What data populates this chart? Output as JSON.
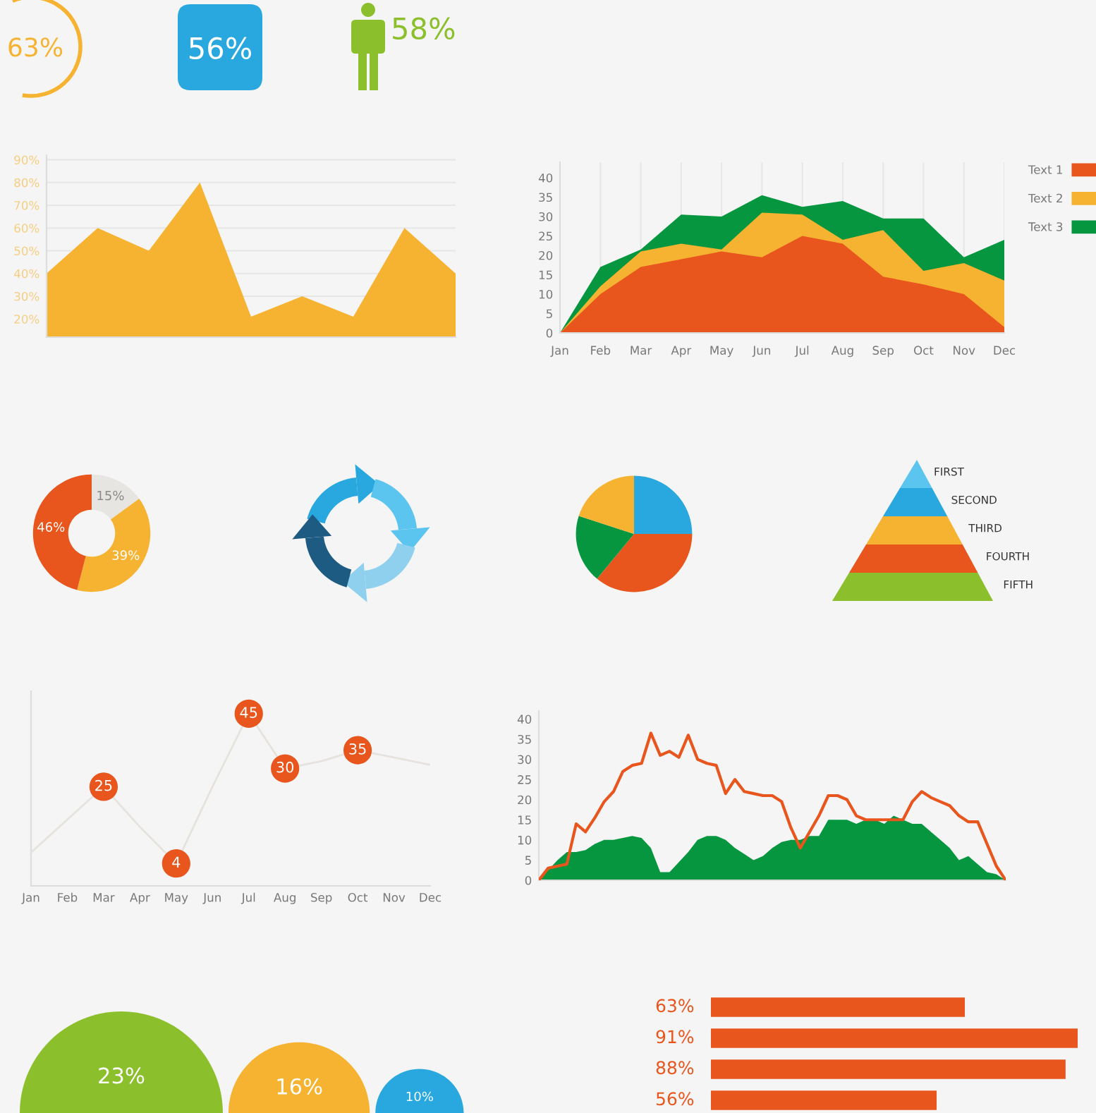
{
  "chart_data": [
    {
      "type": "other",
      "annotations": [
        "63%",
        "56%",
        "58%"
      ],
      "colors": [
        "#f6b331",
        "#29a8e0",
        "#8bbf2c"
      ]
    },
    {
      "type": "area",
      "categories": [
        null,
        null,
        null,
        null,
        null,
        null,
        null,
        null,
        null
      ],
      "values": [
        40,
        60,
        50,
        80,
        21,
        30,
        21,
        60,
        40
      ],
      "color": "#f6b331",
      "ylim": [
        12,
        92
      ],
      "yticks": [
        {
          "value": 20,
          "label": "20%"
        },
        {
          "value": 30,
          "label": "30%"
        },
        {
          "value": 40,
          "label": "40%"
        },
        {
          "value": 50,
          "label": "50%"
        },
        {
          "value": 60,
          "label": "60%"
        },
        {
          "value": 70,
          "label": "70%"
        },
        {
          "value": 80,
          "label": "80%"
        },
        {
          "value": 90,
          "label": "90%"
        }
      ],
      "grid": "y"
    },
    {
      "type": "area",
      "categories": [
        "Jan",
        "Feb",
        "Mar",
        "Apr",
        "May",
        "Jun",
        "Jul",
        "Aug",
        "Sep",
        "Oct",
        "Nov",
        "Dec"
      ],
      "series": [
        {
          "name": "Text 1",
          "color": "#e8561e",
          "values": [
            0,
            10,
            17,
            19,
            21,
            19.5,
            25,
            23,
            14.5,
            12.5,
            10,
            1.5
          ]
        },
        {
          "name": "Text 2",
          "color": "#f6b331",
          "values": [
            0,
            12,
            21,
            23,
            21.5,
            31,
            30.5,
            24,
            26.5,
            16,
            18,
            13.5
          ]
        },
        {
          "name": "Text 3",
          "color": "#05963f",
          "values": [
            0,
            17,
            21.5,
            30.5,
            30,
            35.5,
            32.5,
            34,
            29.5,
            29.5,
            19.5,
            24
          ]
        }
      ],
      "ylim": [
        0,
        44
      ],
      "yticks": [
        0,
        5,
        10,
        15,
        20,
        25,
        30,
        35,
        40
      ],
      "grid": "x",
      "legend": "right"
    },
    {
      "type": "donut",
      "categories": [
        null,
        null,
        null
      ],
      "values": [
        15,
        39,
        46
      ],
      "colors": [
        "#e7e5e2",
        "#f6b331",
        "#e8561e"
      ],
      "value_labels": [
        "15%",
        "39%",
        "46%"
      ]
    },
    {
      "type": "pie",
      "categories": [
        null,
        null,
        null,
        null
      ],
      "values": [
        25,
        36,
        19,
        20
      ],
      "colors": [
        "#29a8e0",
        "#e8561e",
        "#05963f",
        "#f6b331"
      ]
    },
    {
      "type": "other",
      "categories": [
        "FIRST",
        "SECOND",
        "THIRD",
        "FOURTH",
        "FIFTH"
      ],
      "colors": [
        "#5bc4ef",
        "#29a8e0",
        "#f6b331",
        "#e8561e",
        "#8bbf2c"
      ]
    },
    {
      "type": "line",
      "categories": [
        "Jan",
        "Feb",
        "Mar",
        "Apr",
        "May",
        "Jun",
        "Jul",
        "Aug",
        "Sep",
        "Oct",
        "Nov",
        "Dec"
      ],
      "values": [
        7,
        16,
        25,
        14,
        4,
        25,
        45,
        30,
        32,
        35,
        33,
        31
      ],
      "value_labels": [
        null,
        null,
        "25",
        null,
        "4",
        null,
        "45",
        "30",
        null,
        "35",
        null,
        null
      ],
      "color": "#e6e2dd",
      "colors": [
        null,
        null,
        "#e8561e",
        null,
        "#e8561e",
        null,
        "#e8561e",
        "#e8561e",
        null,
        "#e8561e",
        null,
        null
      ],
      "tick_labels": "x"
    },
    {
      "type": "line",
      "categories": [
        null,
        null,
        null,
        null,
        null,
        null,
        null,
        null,
        null,
        null,
        null,
        null,
        null,
        null,
        null,
        null,
        null,
        null,
        null,
        null,
        null,
        null,
        null,
        null,
        null,
        null,
        null,
        null,
        null,
        null,
        null,
        null,
        null,
        null,
        null,
        null,
        null,
        null,
        null,
        null,
        null,
        null,
        null,
        null,
        null,
        null,
        null,
        null,
        null,
        null,
        null
      ],
      "series": [
        {
          "color": "#e8561e",
          "values": [
            0,
            3,
            3.5,
            4,
            14,
            12,
            15.5,
            19.5,
            22,
            27,
            28.5,
            29,
            36.5,
            31,
            32,
            30.5,
            36,
            30,
            29,
            28.5,
            21.5,
            25,
            22,
            21.5,
            21,
            21,
            19.5,
            13,
            8,
            12,
            16,
            21,
            21,
            20,
            16,
            15,
            15,
            15,
            15,
            15,
            19.5,
            22,
            20.5,
            19.5,
            18.5,
            16,
            14.5,
            14.5,
            9,
            3.5,
            0
          ]
        },
        {
          "type": "area",
          "color": "#05963f",
          "values": [
            0,
            2.5,
            5,
            7,
            7,
            7.5,
            9,
            10,
            10,
            10.5,
            11,
            10.5,
            8,
            2,
            2,
            4.5,
            7,
            10,
            11,
            11,
            10,
            8,
            6.5,
            5,
            6,
            8,
            9.5,
            10,
            10,
            11,
            11,
            15,
            15,
            15,
            14,
            15,
            15,
            14,
            16,
            15,
            14,
            14,
            12,
            10,
            8,
            5,
            6,
            4,
            2,
            1.5,
            0
          ]
        }
      ],
      "ylim": [
        0,
        42
      ],
      "yticks": [
        0,
        5,
        10,
        15,
        20,
        25,
        30,
        35,
        40
      ]
    },
    {
      "type": "other",
      "categories": [
        null,
        null,
        null
      ],
      "values": [
        23,
        16,
        10
      ],
      "value_labels": [
        "23%",
        "16%",
        "10%"
      ],
      "colors": [
        "#8bbf2c",
        "#f6b331",
        "#29a8e0"
      ]
    },
    {
      "type": "bar",
      "orientation": "horizontal",
      "categories": [
        null,
        null,
        null,
        null
      ],
      "values": [
        63,
        91,
        88,
        56
      ],
      "value_labels": [
        "63%",
        "91%",
        "88%",
        "56%"
      ],
      "color": "#e8561e"
    }
  ]
}
